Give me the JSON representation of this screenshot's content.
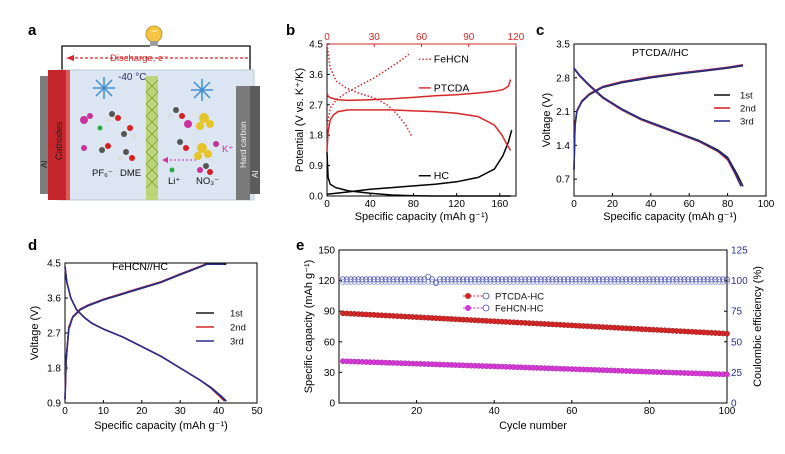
{
  "panel_a": {
    "label": "a",
    "discharge_label": "Discharge, e⁻",
    "temperature": "-40 °C",
    "cathode_label": "Cathodes",
    "anode_label": "Hard carbon",
    "al_left": "Al",
    "al_right": "Al",
    "ion_pf6": "PF₆⁻",
    "solvent_dme": "DME",
    "ion_li": "Li⁺",
    "ion_k": "K⁺",
    "ion_no3": "NO₃⁻"
  },
  "panel_b": {
    "label": "b"
  },
  "panel_c": {
    "label": "c"
  },
  "panel_d": {
    "label": "d"
  },
  "panel_e": {
    "label": "e"
  },
  "chart_data": [
    {
      "panel": "b",
      "type": "line",
      "title": "",
      "xlabel": "Specific capacity (mAh g⁻¹)",
      "ylabel": "Potential (V vs. K⁺/K)",
      "xlim": [
        0,
        175
      ],
      "ylim": [
        0,
        4.5
      ],
      "xticks": [
        0,
        40,
        80,
        120,
        160
      ],
      "yticks": [
        0.0,
        0.9,
        1.8,
        2.7,
        3.6,
        4.5
      ],
      "top_xlim": [
        0,
        120
      ],
      "top_xticks": [
        0,
        30,
        60,
        90,
        120
      ],
      "series": [
        {
          "name": "HC",
          "color": "#000000",
          "style": "solid",
          "axis": "bottom",
          "x": [
            0,
            1,
            3,
            8,
            20,
            40,
            60,
            80,
            100,
            120,
            140,
            155,
            165,
            170
          ],
          "y": [
            1.3,
            0.55,
            0.35,
            0.25,
            0.15,
            0.08,
            0.03,
            0.01,
            0.0,
            0.0,
            0.0,
            0.0,
            0.0,
            0.0
          ]
        },
        {
          "name": "HC-charge",
          "color": "#000000",
          "style": "solid",
          "axis": "bottom",
          "x": [
            0,
            20,
            40,
            60,
            80,
            100,
            120,
            140,
            155,
            163,
            168,
            171
          ],
          "y": [
            0.05,
            0.12,
            0.2,
            0.25,
            0.3,
            0.35,
            0.42,
            0.55,
            0.8,
            1.2,
            1.6,
            1.95
          ]
        },
        {
          "name": "PTCDA",
          "color": "#d62728",
          "style": "solid",
          "axis": "bottom",
          "x": [
            0,
            1,
            3,
            6,
            10,
            20,
            40,
            60,
            80,
            100,
            120,
            140,
            155,
            162,
            167,
            170
          ],
          "y": [
            1.35,
            1.9,
            2.25,
            2.4,
            2.5,
            2.55,
            2.55,
            2.55,
            2.52,
            2.5,
            2.45,
            2.35,
            2.1,
            1.8,
            1.5,
            1.35
          ]
        },
        {
          "name": "PTCDA-charge",
          "color": "#d62728",
          "style": "solid",
          "axis": "bottom",
          "x": [
            0,
            1,
            4,
            10,
            20,
            40,
            60,
            80,
            100,
            120,
            140,
            155,
            163,
            168,
            170
          ],
          "y": [
            3.05,
            2.95,
            2.9,
            2.85,
            2.83,
            2.85,
            2.88,
            2.92,
            2.97,
            3.0,
            3.05,
            3.1,
            3.15,
            3.25,
            3.45
          ]
        },
        {
          "name": "FeHCN",
          "color": "#d62728",
          "style": "dotted",
          "axis": "top",
          "x": [
            0,
            2,
            6,
            12,
            20,
            30,
            40,
            48,
            52
          ],
          "y": [
            2.0,
            2.6,
            2.85,
            3.05,
            3.25,
            3.5,
            3.8,
            4.05,
            4.2
          ]
        },
        {
          "name": "FeHCN-discharge",
          "color": "#d62728",
          "style": "dotted",
          "axis": "top",
          "x": [
            0,
            2,
            6,
            12,
            20,
            30,
            38,
            44,
            50,
            54
          ],
          "y": [
            4.5,
            3.8,
            3.4,
            3.2,
            3.05,
            2.9,
            2.7,
            2.45,
            2.1,
            1.75
          ]
        }
      ],
      "annotations": [
        "FeHCN",
        "PTCDA",
        "HC"
      ]
    },
    {
      "panel": "c",
      "type": "line",
      "title": "PTCDA//HC",
      "xlabel": "Specific capacity (mAh g⁻¹)",
      "ylabel": "Voltage (V)",
      "xlim": [
        0,
        100
      ],
      "ylim": [
        0.35,
        3.5
      ],
      "xticks": [
        0,
        20,
        40,
        60,
        80,
        100
      ],
      "yticks": [
        0.7,
        1.4,
        2.1,
        2.8,
        3.5
      ],
      "series": [
        {
          "name": "1st",
          "color": "#1a1a1a",
          "x": [
            0,
            0.5,
            1.5,
            4,
            8,
            15,
            25,
            40,
            55,
            70,
            80,
            88
          ],
          "y": [
            0.9,
            1.8,
            2.1,
            2.3,
            2.45,
            2.6,
            2.7,
            2.8,
            2.88,
            2.95,
            3.0,
            3.05
          ]
        },
        {
          "name": "2nd",
          "color": "#d62728",
          "x": [
            0,
            0.5,
            1.5,
            4,
            8,
            15,
            25,
            40,
            55,
            70,
            80,
            88
          ],
          "y": [
            0.9,
            1.85,
            2.12,
            2.32,
            2.47,
            2.62,
            2.72,
            2.82,
            2.9,
            2.97,
            3.02,
            3.07
          ]
        },
        {
          "name": "3rd",
          "color": "#2a2f8f",
          "x": [
            0,
            0.5,
            1.5,
            4,
            8,
            15,
            25,
            40,
            55,
            70,
            80,
            88
          ],
          "y": [
            0.9,
            1.82,
            2.11,
            2.31,
            2.46,
            2.61,
            2.71,
            2.81,
            2.89,
            2.96,
            3.01,
            3.06
          ]
        },
        {
          "name": "1st-discharge",
          "color": "#1a1a1a",
          "x": [
            0,
            1,
            3,
            8,
            15,
            25,
            35,
            45,
            55,
            65,
            75,
            80,
            85,
            88
          ],
          "y": [
            3.0,
            2.95,
            2.85,
            2.65,
            2.4,
            2.15,
            1.95,
            1.8,
            1.65,
            1.5,
            1.3,
            1.15,
            0.8,
            0.55
          ]
        },
        {
          "name": "2nd-discharge",
          "color": "#d62728",
          "x": [
            0,
            1,
            3,
            8,
            15,
            25,
            35,
            45,
            55,
            65,
            75,
            80,
            84,
            87
          ],
          "y": [
            3.0,
            2.94,
            2.83,
            2.63,
            2.38,
            2.13,
            1.93,
            1.78,
            1.63,
            1.48,
            1.27,
            1.1,
            0.8,
            0.55
          ]
        },
        {
          "name": "3rd-discharge",
          "color": "#2a2f8f",
          "x": [
            0,
            1,
            3,
            8,
            15,
            25,
            35,
            45,
            55,
            65,
            75,
            80,
            84,
            87
          ],
          "y": [
            3.0,
            2.94,
            2.84,
            2.64,
            2.39,
            2.14,
            1.94,
            1.79,
            1.64,
            1.49,
            1.28,
            1.12,
            0.82,
            0.55
          ]
        }
      ],
      "legend": [
        "1st",
        "2nd",
        "3rd"
      ],
      "legend_position": "right"
    },
    {
      "panel": "d",
      "type": "line",
      "title": "FeHCN//HC",
      "xlabel": "Specific capacity (mAh g⁻¹)",
      "ylabel": "Voltage (V)",
      "xlim": [
        0,
        50
      ],
      "ylim": [
        0.9,
        4.5
      ],
      "xticks": [
        0,
        10,
        20,
        30,
        40,
        50
      ],
      "yticks": [
        0.9,
        1.8,
        2.7,
        3.6,
        4.5
      ],
      "series": [
        {
          "name": "1st",
          "color": "#1a1a1a",
          "x": [
            0,
            0.3,
            1,
            2,
            4,
            6,
            10,
            15,
            20,
            25,
            30,
            34,
            37,
            42
          ],
          "y": [
            1.0,
            2.0,
            2.8,
            3.1,
            3.3,
            3.4,
            3.55,
            3.7,
            3.85,
            4.0,
            4.2,
            4.35,
            4.47,
            4.47
          ]
        },
        {
          "name": "2nd",
          "color": "#d62728",
          "x": [
            0,
            0.3,
            1,
            2,
            4,
            6,
            10,
            15,
            20,
            25,
            30,
            34,
            36.5,
            41
          ],
          "y": [
            1.0,
            2.05,
            2.85,
            3.12,
            3.32,
            3.42,
            3.57,
            3.72,
            3.87,
            4.02,
            4.22,
            4.37,
            4.47,
            4.47
          ]
        },
        {
          "name": "3rd",
          "color": "#2a2f8f",
          "x": [
            0,
            0.3,
            1,
            2,
            4,
            6,
            10,
            15,
            20,
            25,
            30,
            34,
            36.8,
            41.5
          ],
          "y": [
            1.0,
            2.02,
            2.82,
            3.11,
            3.31,
            3.41,
            3.56,
            3.71,
            3.86,
            4.01,
            4.21,
            4.36,
            4.47,
            4.47
          ]
        },
        {
          "name": "1st-discharge",
          "color": "#1a1a1a",
          "x": [
            0,
            0.5,
            1.5,
            3,
            5,
            7,
            10,
            15,
            20,
            25,
            30,
            35,
            38,
            41,
            42
          ],
          "y": [
            4.4,
            4.0,
            3.6,
            3.3,
            3.1,
            2.95,
            2.8,
            2.6,
            2.35,
            2.1,
            1.8,
            1.5,
            1.3,
            1.05,
            0.95
          ]
        },
        {
          "name": "2nd-discharge",
          "color": "#d62728",
          "x": [
            0,
            0.5,
            1.5,
            3,
            5,
            7,
            10,
            15,
            20,
            25,
            30,
            35,
            38,
            40.5,
            41.5
          ],
          "y": [
            4.4,
            4.0,
            3.6,
            3.3,
            3.1,
            2.95,
            2.8,
            2.6,
            2.35,
            2.1,
            1.8,
            1.5,
            1.28,
            1.05,
            0.95
          ]
        },
        {
          "name": "3rd-discharge",
          "color": "#2a2f8f",
          "x": [
            0,
            0.5,
            1.5,
            3,
            5,
            7,
            10,
            15,
            20,
            25,
            30,
            35,
            38,
            40.8,
            41.8
          ],
          "y": [
            4.4,
            4.0,
            3.6,
            3.3,
            3.1,
            2.95,
            2.8,
            2.6,
            2.35,
            2.1,
            1.8,
            1.5,
            1.29,
            1.05,
            0.95
          ]
        }
      ],
      "legend": [
        "1st",
        "2nd",
        "3rd"
      ],
      "legend_position": "right"
    },
    {
      "panel": "e",
      "type": "scatter",
      "title": "",
      "xlabel": "Cycle number",
      "ylabel": "Specific capacity (mAh g⁻¹)",
      "y2label": "Coulombic efficiency (%)",
      "xlim": [
        0,
        100
      ],
      "ylim": [
        0,
        150
      ],
      "y2lim": [
        0,
        125
      ],
      "xticks": [
        20,
        40,
        60,
        80,
        100
      ],
      "yticks": [
        0,
        30,
        60,
        90,
        120,
        150
      ],
      "y2ticks": [
        0,
        25,
        50,
        75,
        100,
        125
      ],
      "series": [
        {
          "name": "PTCDA-HC",
          "color": "#d62728",
          "start": 88,
          "end": 68,
          "count": 100
        },
        {
          "name": "FeHCN-HC",
          "color": "#d63ad6",
          "start": 41,
          "end": 28,
          "count": 100
        },
        {
          "name": "PTCDA-HC CE",
          "color": "#2a2f8f",
          "axis": "right",
          "value": 101,
          "count": 100
        },
        {
          "name": "FeHCN-HC CE",
          "color": "#2a2f8f",
          "axis": "right",
          "value": 100,
          "count": 100
        }
      ],
      "legend": [
        "PTCDA-HC",
        "FeHCN-HC"
      ],
      "legend_position": "center-left"
    }
  ]
}
